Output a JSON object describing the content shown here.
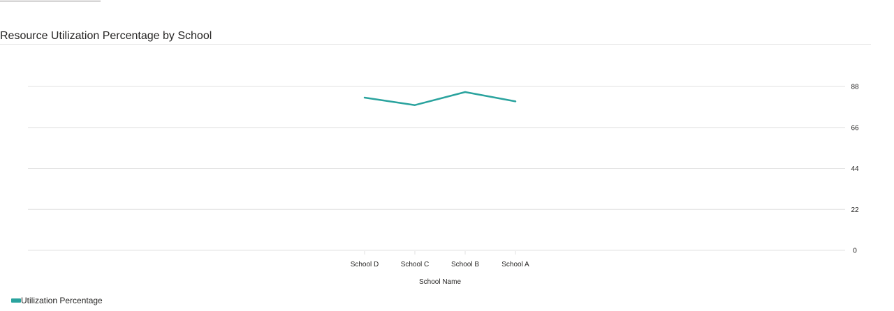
{
  "page": {
    "title": "Resource Utilization Percentage by School"
  },
  "legend": {
    "label": "Utilization Percentage"
  },
  "colors": {
    "series": "#2aa39e",
    "gridline": "#e1e1e1",
    "text": "#252423"
  },
  "chart_data": {
    "type": "line",
    "title": "Resource Utilization Percentage by School",
    "xlabel": "School Name",
    "ylabel": "",
    "categories": [
      "School D",
      "School C",
      "School B",
      "School A"
    ],
    "series": [
      {
        "name": "Utilization Percentage",
        "values": [
          82,
          78,
          85,
          80
        ]
      }
    ],
    "ylim": [
      0,
      88
    ],
    "yticks": [
      0,
      22,
      44,
      66,
      88
    ],
    "y_axis_side": "right",
    "grid": true,
    "legend_position": "bottom-left"
  }
}
